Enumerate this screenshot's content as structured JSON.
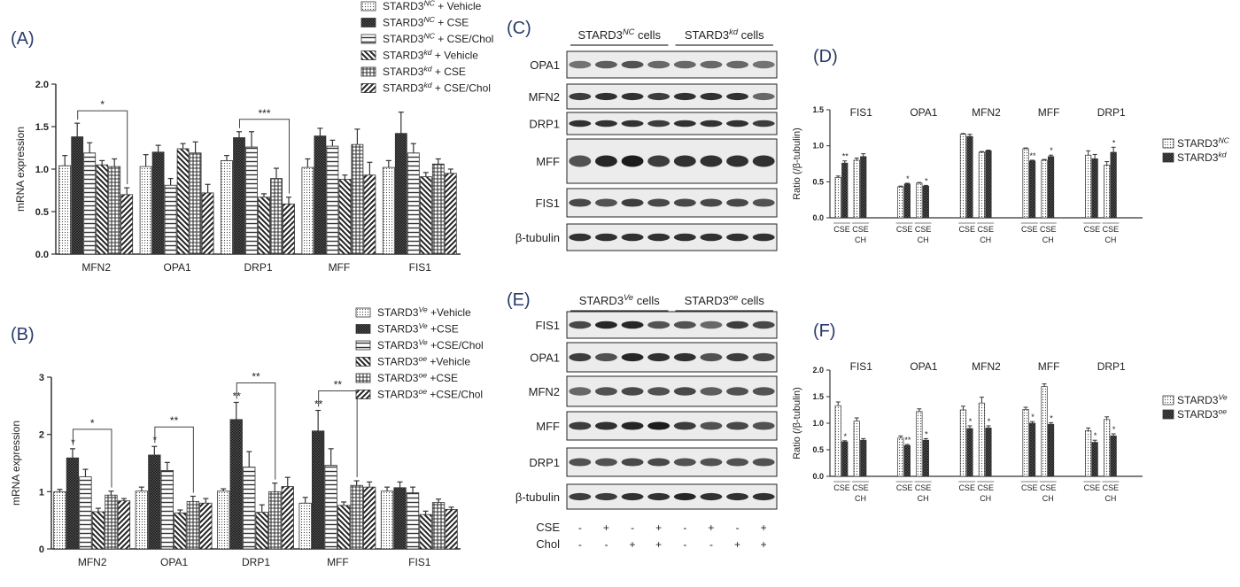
{
  "colors": {
    "ink": "#222222",
    "axis": "#333333",
    "blot_bg": "#ededed",
    "band": "#1c1c1c"
  },
  "panels": {
    "A": "(A)",
    "B": "(B)",
    "C": "(C)",
    "D": "(D)",
    "E": "(E)",
    "F": "(F)"
  },
  "chart_data": [
    {
      "id": "A",
      "type": "bar",
      "title": "",
      "xlabel": "",
      "ylabel": "mRNA expression",
      "ylim": [
        0,
        2.0
      ],
      "yticks": [
        "0.0",
        "0.5",
        "1.0",
        "1.5",
        "2.0"
      ],
      "categories": [
        "MFN2",
        "OPA1",
        "DRP1",
        "MFF",
        "FIS1"
      ],
      "legend_position": "top-right",
      "series": [
        {
          "name": "STARD3NC + Vehicle",
          "label_base": "STARD3",
          "label_sup": "NC",
          "label_rest": " + Vehicle",
          "pattern": "dots",
          "values": [
            1.04,
            1.03,
            1.1,
            1.02,
            1.02
          ],
          "errors": [
            0.12,
            0.14,
            0.06,
            0.1,
            0.08
          ]
        },
        {
          "name": "STARD3NC + CSE",
          "label_base": "STARD3",
          "label_sup": "NC",
          "label_rest": " + CSE",
          "pattern": "cross",
          "values": [
            1.38,
            1.2,
            1.37,
            1.39,
            1.42
          ],
          "errors": [
            0.16,
            0.08,
            0.07,
            0.09,
            0.25
          ]
        },
        {
          "name": "STARD3NC + CSE/Chol",
          "label_base": "STARD3",
          "label_sup": "NC",
          "label_rest": " + CSE/Chol",
          "pattern": "hlines",
          "values": [
            1.19,
            0.81,
            1.26,
            1.27,
            1.19
          ],
          "errors": [
            0.12,
            0.08,
            0.18,
            0.07,
            0.11
          ]
        },
        {
          "name": "STARD3kd + Vehicle",
          "label_base": "STARD3",
          "label_sup": "kd",
          "label_rest": " + Vehicle",
          "pattern": "backdiag",
          "values": [
            1.05,
            1.24,
            0.67,
            0.88,
            0.91
          ],
          "errors": [
            0.05,
            0.06,
            0.04,
            0.05,
            0.05
          ]
        },
        {
          "name": "STARD3kd + CSE",
          "label_base": "STARD3",
          "label_sup": "kd",
          "label_rest": " + CSE",
          "pattern": "grid",
          "values": [
            1.03,
            1.19,
            0.89,
            1.29,
            1.06
          ],
          "errors": [
            0.09,
            0.13,
            0.12,
            0.18,
            0.06
          ]
        },
        {
          "name": "STARD3kd + CSE/Chol",
          "label_base": "STARD3",
          "label_sup": "kd",
          "label_rest": " + CSE/Chol",
          "pattern": "fwddiag",
          "values": [
            0.7,
            0.72,
            0.59,
            0.93,
            0.95
          ],
          "errors": [
            0.08,
            0.1,
            0.08,
            0.15,
            0.05
          ]
        }
      ],
      "significance": [
        {
          "category": 0,
          "from": 1,
          "to": 5,
          "label": "*"
        },
        {
          "category": 2,
          "from": 1,
          "to": 5,
          "label": "***"
        }
      ]
    },
    {
      "id": "B",
      "type": "bar",
      "title": "",
      "xlabel": "",
      "ylabel": "mRNA expression",
      "ylim": [
        0,
        3
      ],
      "yticks": [
        "0",
        "1",
        "2",
        "3"
      ],
      "categories": [
        "MFN2",
        "OPA1",
        "DRP1",
        "MFF",
        "FIS1"
      ],
      "legend_position": "top-right",
      "series": [
        {
          "name": "STARD3Ve +Vehicle",
          "label_base": "STARD3",
          "label_sup": "Ve",
          "label_rest": " +Vehicle",
          "pattern": "dots",
          "values": [
            1.0,
            1.01,
            1.01,
            0.8,
            1.01
          ],
          "errors": [
            0.04,
            0.07,
            0.04,
            0.1,
            0.07
          ]
        },
        {
          "name": "STARD3Ve +CSE",
          "label_base": "STARD3",
          "label_sup": "Ve",
          "label_rest": " +CSE",
          "pattern": "cross",
          "values": [
            1.59,
            1.64,
            2.26,
            2.06,
            1.07
          ],
          "errors": [
            0.16,
            0.15,
            0.3,
            0.36,
            0.1
          ]
        },
        {
          "name": "STARD3Ve +CSE/Chol",
          "label_base": "STARD3",
          "label_sup": "Ve",
          "label_rest": " +CSE/Chol",
          "pattern": "hlines",
          "values": [
            1.26,
            1.37,
            1.43,
            1.46,
            0.98
          ],
          "errors": [
            0.13,
            0.14,
            0.27,
            0.29,
            0.1
          ]
        },
        {
          "name": "STARD3oe +Vehicle",
          "label_base": "STARD3",
          "label_sup": "oe",
          "label_rest": " +Vehicle",
          "pattern": "backdiag",
          "values": [
            0.65,
            0.63,
            0.64,
            0.76,
            0.6
          ],
          "errors": [
            0.06,
            0.05,
            0.13,
            0.06,
            0.06
          ]
        },
        {
          "name": "STARD3oe +CSE",
          "label_base": "STARD3",
          "label_sup": "oe",
          "label_rest": " +CSE",
          "pattern": "grid",
          "values": [
            0.94,
            0.83,
            1.0,
            1.11,
            0.81
          ],
          "errors": [
            0.07,
            0.09,
            0.15,
            0.08,
            0.06
          ]
        },
        {
          "name": "STARD3oe +CSE/Chol",
          "label_base": "STARD3",
          "label_sup": "oe",
          "label_rest": " +CSE/Chol",
          "pattern": "fwddiag",
          "values": [
            0.84,
            0.8,
            1.09,
            1.08,
            0.69
          ],
          "errors": [
            0.04,
            0.08,
            0.16,
            0.09,
            0.04
          ]
        }
      ],
      "point_marks": [
        {
          "category": 0,
          "series": 1,
          "label": "*"
        },
        {
          "category": 1,
          "series": 1,
          "label": "*"
        },
        {
          "category": 2,
          "series": 1,
          "label": "**"
        },
        {
          "category": 3,
          "series": 1,
          "label": "**"
        }
      ],
      "significance": [
        {
          "category": 0,
          "from": 1,
          "to": 4,
          "label": "*"
        },
        {
          "category": 1,
          "from": 1,
          "to": 4,
          "label": "**"
        },
        {
          "category": 2,
          "from": 1,
          "to": 4,
          "label": "**"
        },
        {
          "category": 3,
          "from": 1,
          "to": 4,
          "label": "**"
        }
      ]
    },
    {
      "id": "D",
      "type": "bar",
      "title": "",
      "xlabel": "",
      "ylabel": "Ratio (/β-tubulin)",
      "ylim": [
        0,
        1.5
      ],
      "yticks": [
        "0.0",
        "0.5",
        "1.0",
        "1.5"
      ],
      "categories": [
        "FIS1",
        "OPA1",
        "MFN2",
        "MFF",
        "DRP1"
      ],
      "group_labels": [
        "CSE",
        "CSE\nCH"
      ],
      "legend_position": "right",
      "series": [
        {
          "name": "STARD3NC",
          "label_base": "STARD3",
          "label_sup": "NC",
          "label_rest": "",
          "pattern": "dots",
          "values": [
            [
              0.56,
              0.8
            ],
            [
              0.43,
              0.48
            ],
            [
              1.16,
              0.91
            ],
            [
              0.96,
              0.8
            ],
            [
              0.87,
              0.73
            ]
          ],
          "errors": [
            [
              0.02,
              0.03
            ],
            [
              0.01,
              0.01
            ],
            [
              0.01,
              0.01
            ],
            [
              0.01,
              0.01
            ],
            [
              0.06,
              0.05
            ]
          ]
        },
        {
          "name": "STARD3kd",
          "label_base": "STARD3",
          "label_sup": "kd",
          "label_rest": "",
          "pattern": "cross",
          "values": [
            [
              0.76,
              0.85
            ],
            [
              0.47,
              0.44
            ],
            [
              1.13,
              0.93
            ],
            [
              0.79,
              0.85
            ],
            [
              0.82,
              0.91
            ]
          ],
          "errors": [
            [
              0.03,
              0.04
            ],
            [
              0.01,
              0.01
            ],
            [
              0.03,
              0.01
            ],
            [
              0.01,
              0.02
            ],
            [
              0.06,
              0.07
            ]
          ]
        }
      ],
      "point_marks": [
        {
          "category": 0,
          "group": 0,
          "series": 1,
          "label": "**"
        },
        {
          "category": 1,
          "group": 0,
          "series": 1,
          "label": "*"
        },
        {
          "category": 1,
          "group": 1,
          "series": 1,
          "label": "*"
        },
        {
          "category": 3,
          "group": 0,
          "series": 1,
          "label": "**"
        },
        {
          "category": 3,
          "group": 1,
          "series": 1,
          "label": "*"
        },
        {
          "category": 4,
          "group": 1,
          "series": 1,
          "label": "*"
        }
      ]
    },
    {
      "id": "F",
      "type": "bar",
      "title": "",
      "xlabel": "",
      "ylabel": "Ratio (/β-tubulin)",
      "ylim": [
        0,
        2.0
      ],
      "yticks": [
        "0.0",
        "0.5",
        "1.0",
        "1.5",
        "2.0"
      ],
      "categories": [
        "FIS1",
        "OPA1",
        "MFN2",
        "MFF",
        "DRP1"
      ],
      "group_labels": [
        "CSE",
        "CSE\nCH"
      ],
      "legend_position": "right",
      "series": [
        {
          "name": "STARD3Ve",
          "label_base": "STARD3",
          "label_sup": "Ve",
          "label_rest": "",
          "pattern": "dots",
          "values": [
            [
              1.33,
              1.04
            ],
            [
              0.72,
              1.22
            ],
            [
              1.25,
              1.38
            ],
            [
              1.26,
              1.69
            ],
            [
              0.86,
              1.07
            ]
          ],
          "errors": [
            [
              0.07,
              0.06
            ],
            [
              0.04,
              0.05
            ],
            [
              0.07,
              0.11
            ],
            [
              0.04,
              0.05
            ],
            [
              0.05,
              0.05
            ]
          ]
        },
        {
          "name": "STARD3oe",
          "label_base": "STARD3",
          "label_sup": "oe",
          "label_rest": "",
          "pattern": "cross",
          "values": [
            [
              0.65,
              0.68
            ],
            [
              0.58,
              0.68
            ],
            [
              0.9,
              0.91
            ],
            [
              1.0,
              0.98
            ],
            [
              0.64,
              0.76
            ]
          ],
          "errors": [
            [
              0.02,
              0.03
            ],
            [
              0.02,
              0.03
            ],
            [
              0.05,
              0.04
            ],
            [
              0.03,
              0.03
            ],
            [
              0.04,
              0.04
            ]
          ]
        }
      ],
      "point_marks": [
        {
          "category": 0,
          "group": 0,
          "series": 1,
          "label": "*"
        },
        {
          "category": 1,
          "group": 0,
          "series": 1,
          "label": "**"
        },
        {
          "category": 1,
          "group": 1,
          "series": 1,
          "label": "*"
        },
        {
          "category": 2,
          "group": 0,
          "series": 1,
          "label": "*"
        },
        {
          "category": 2,
          "group": 1,
          "series": 1,
          "label": "*"
        },
        {
          "category": 3,
          "group": 0,
          "series": 1,
          "label": "*"
        },
        {
          "category": 3,
          "group": 1,
          "series": 1,
          "label": "*"
        },
        {
          "category": 4,
          "group": 0,
          "series": 1,
          "label": "*"
        },
        {
          "category": 4,
          "group": 1,
          "series": 1,
          "label": "*"
        }
      ]
    }
  ],
  "blots": {
    "C": {
      "group_headers": [
        {
          "base": "STARD3",
          "sup": "NC",
          "rest": " cells"
        },
        {
          "base": "STARD3",
          "sup": "kd",
          "rest": " cells"
        }
      ],
      "rows": [
        {
          "label": "OPA1",
          "intensity": [
            0.55,
            0.65,
            0.7,
            0.6,
            0.6,
            0.6,
            0.6,
            0.55
          ]
        },
        {
          "label": "MFN2",
          "intensity": [
            0.8,
            0.85,
            0.85,
            0.8,
            0.85,
            0.85,
            0.85,
            0.6
          ]
        },
        {
          "label": "DRP1",
          "intensity": [
            0.85,
            0.85,
            0.85,
            0.8,
            0.85,
            0.85,
            0.85,
            0.8
          ]
        },
        {
          "label": "MFF",
          "intensity": [
            0.7,
            0.9,
            0.95,
            0.8,
            0.85,
            0.85,
            0.85,
            0.85
          ]
        },
        {
          "label": "FIS1",
          "intensity": [
            0.75,
            0.7,
            0.8,
            0.75,
            0.75,
            0.75,
            0.75,
            0.7
          ]
        },
        {
          "label": "β-tubulin",
          "intensity": [
            0.85,
            0.85,
            0.85,
            0.85,
            0.85,
            0.85,
            0.85,
            0.85
          ]
        }
      ]
    },
    "E": {
      "group_headers": [
        {
          "base": "STARD3",
          "sup": "Ve",
          "rest": " cells"
        },
        {
          "base": "STARD3",
          "sup": "oe",
          "rest": " cells"
        }
      ],
      "rows": [
        {
          "label": "FIS1",
          "intensity": [
            0.75,
            0.9,
            0.9,
            0.7,
            0.7,
            0.6,
            0.8,
            0.75
          ]
        },
        {
          "label": "OPA1",
          "intensity": [
            0.8,
            0.7,
            0.9,
            0.85,
            0.85,
            0.7,
            0.8,
            0.75
          ]
        },
        {
          "label": "MFN2",
          "intensity": [
            0.6,
            0.7,
            0.75,
            0.7,
            0.75,
            0.65,
            0.7,
            0.7
          ]
        },
        {
          "label": "MFF",
          "intensity": [
            0.8,
            0.85,
            0.9,
            0.95,
            0.8,
            0.7,
            0.75,
            0.7
          ]
        },
        {
          "label": "DRP1",
          "intensity": [
            0.7,
            0.7,
            0.75,
            0.75,
            0.7,
            0.7,
            0.7,
            0.7
          ]
        },
        {
          "label": "β-tubulin",
          "intensity": [
            0.8,
            0.8,
            0.85,
            0.85,
            0.9,
            0.85,
            0.85,
            0.85
          ]
        }
      ],
      "treatments": [
        {
          "label": "CSE",
          "signs": [
            "-",
            "+",
            "-",
            "+",
            "-",
            "+",
            "-",
            "+"
          ]
        },
        {
          "label": "Chol",
          "signs": [
            "-",
            "-",
            "+",
            "+",
            "-",
            "-",
            "+",
            "+"
          ]
        }
      ]
    }
  }
}
